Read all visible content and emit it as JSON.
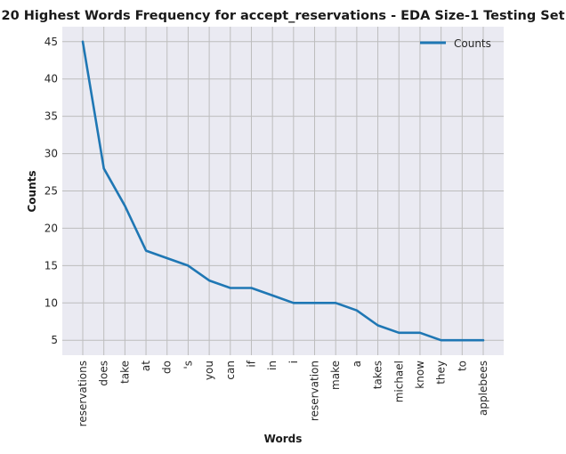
{
  "chart_data": {
    "type": "line",
    "title": "20 Highest Words Frequency for accept_reservations - EDA Size-1 Testing Set",
    "xlabel": "Words",
    "ylabel": "Counts",
    "categories": [
      "reservations",
      "does",
      "take",
      "at",
      "do",
      "'s",
      "you",
      "can",
      "if",
      "in",
      "i",
      "reservation",
      "make",
      "a",
      "takes",
      "michael",
      "know",
      "they",
      "to",
      "applebees"
    ],
    "series": [
      {
        "name": "Counts",
        "values": [
          45,
          28,
          23,
          17,
          16,
          15,
          13,
          12,
          12,
          11,
          10,
          10,
          10,
          9,
          7,
          6,
          6,
          5,
          5,
          5
        ]
      }
    ],
    "yticks": [
      5,
      10,
      15,
      20,
      25,
      30,
      35,
      40,
      45
    ],
    "ylim": [
      3.0,
      47.0
    ],
    "grid": true,
    "legend_position": "top-right",
    "colors": {
      "line": "#1f77b4",
      "plot_background": "#eaeaf2",
      "grid": "#bdbdbd"
    }
  }
}
